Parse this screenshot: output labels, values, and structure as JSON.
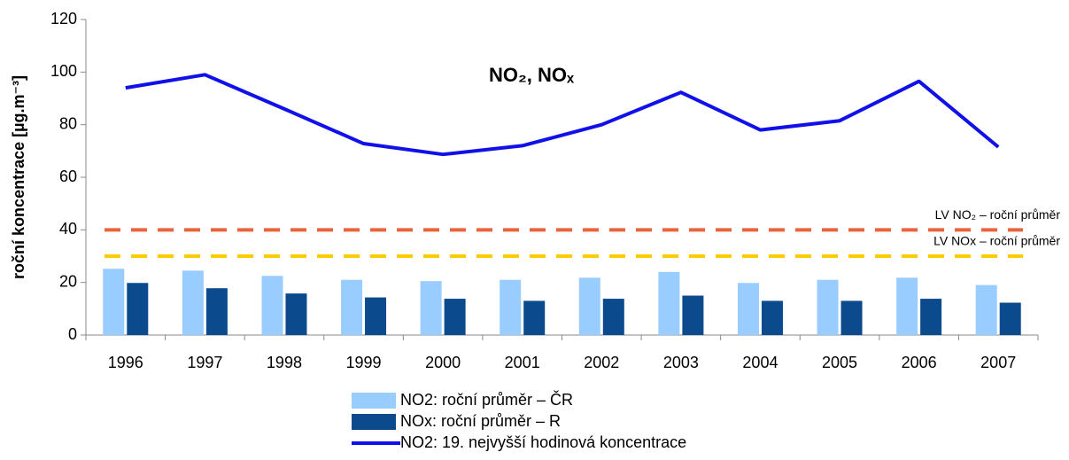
{
  "chart_data": {
    "type": "bar_line",
    "title": "NO₂, NOₓ",
    "y_label": "roční koncentrace [µg.m⁻³]",
    "categories": [
      "1996",
      "1997",
      "1998",
      "1999",
      "2000",
      "2001",
      "2002",
      "2003",
      "2004",
      "2005",
      "2006",
      "2007"
    ],
    "series": [
      {
        "name": "NO2: roční průměr – ČR",
        "type": "bar",
        "color": "#99ccff",
        "values": [
          25.2,
          24.5,
          22.5,
          21,
          20.5,
          21,
          21.8,
          24,
          19.8,
          21,
          21.8,
          19
        ]
      },
      {
        "name": "NOx: roční průměr – R",
        "type": "bar",
        "color": "#0b4a8c",
        "values": [
          19.8,
          17.8,
          15.8,
          14.3,
          13.8,
          13,
          13.8,
          15,
          13,
          13,
          13.8,
          12.3
        ]
      },
      {
        "name": "NO2: 19. nejvyšší hodinová koncentrace",
        "type": "line",
        "color": "#1010e8",
        "values": [
          94,
          99,
          86,
          72.8,
          68.7,
          72,
          80,
          92.3,
          78,
          81.5,
          96.5,
          71.5
        ]
      }
    ],
    "thresholds": [
      {
        "label": "LV NO₂ – roční průměr",
        "value": 40,
        "color": "#e8643c"
      },
      {
        "label": "LV NOx – roční průměr",
        "value": 30,
        "color": "#ffcc00"
      }
    ],
    "ylim": [
      0,
      120
    ],
    "yticks": [
      0,
      20,
      40,
      60,
      80,
      100,
      120
    ],
    "grid": false
  }
}
